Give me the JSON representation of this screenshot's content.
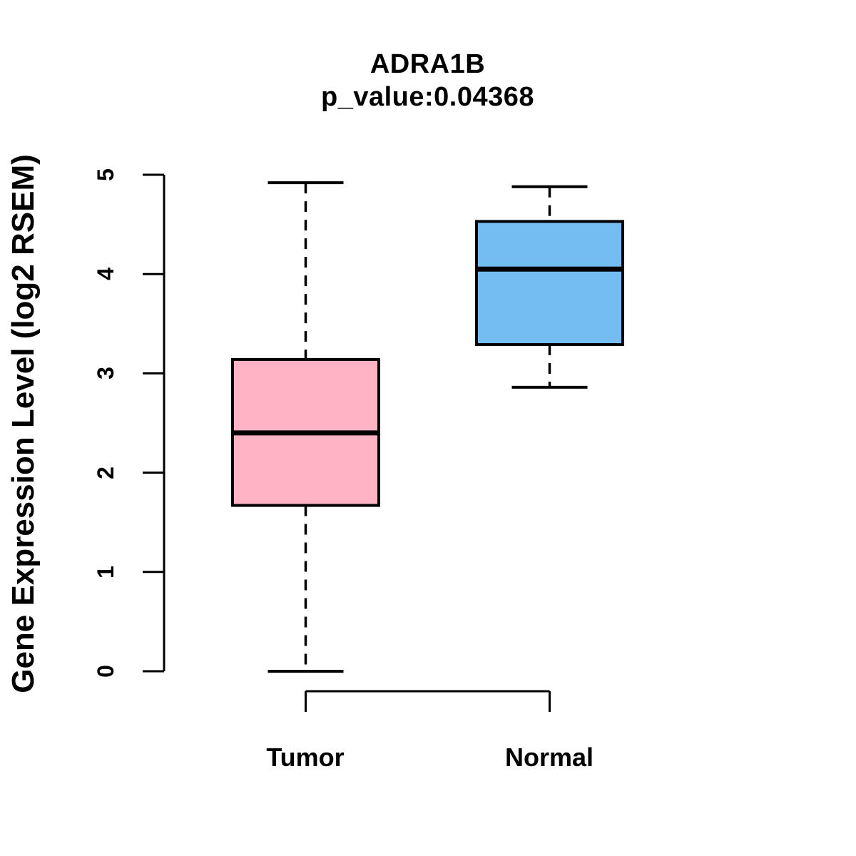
{
  "page": {
    "background": "#FFFFFF",
    "text_color": "#000000"
  },
  "chart_data": {
    "type": "boxplot",
    "title": "ADRA1B",
    "subtitle": "p_value:0.04368",
    "ylabel": "Gene Expression Level (log2 RSEM)",
    "xlabel": "",
    "ylim": [
      0,
      5
    ],
    "yticks": [
      0,
      1,
      2,
      3,
      4,
      5
    ],
    "grid": false,
    "legend": null,
    "categories": [
      "Tumor",
      "Normal"
    ],
    "series": [
      {
        "name": "Tumor",
        "box_color": "#FFB3C5",
        "stroke_color": "#000000",
        "whisker_low": 0.0,
        "q1": 1.67,
        "median": 2.4,
        "q3": 3.14,
        "whisker_high": 4.92
      },
      {
        "name": "Normal",
        "box_color": "#74BDF2",
        "stroke_color": "#000000",
        "whisker_low": 2.86,
        "q1": 3.29,
        "median": 4.05,
        "q3": 4.53,
        "whisker_high": 4.88
      }
    ]
  }
}
